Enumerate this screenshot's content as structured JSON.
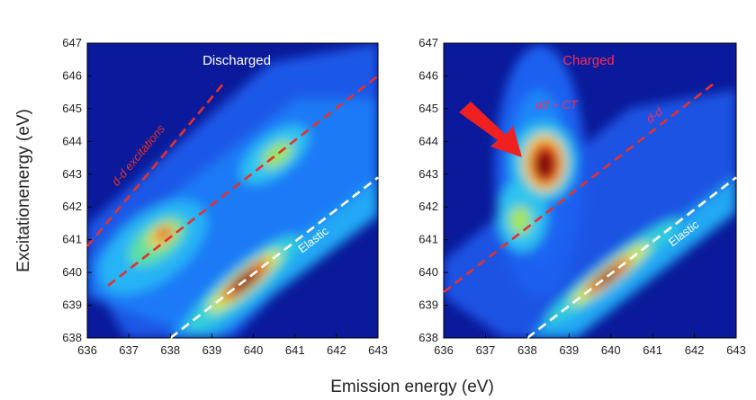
{
  "figure": {
    "ylabel": "Excitationenergy (eV)",
    "xlabel": "Emission energy (eV)"
  },
  "chart_data": [
    {
      "type": "heatmap",
      "title": "Discharged",
      "title_color": "#ffffff",
      "xlim": [
        636,
        643
      ],
      "ylim": [
        638,
        647
      ],
      "x_ticks": [
        636,
        637,
        638,
        639,
        640,
        641,
        642,
        643
      ],
      "y_ticks": [
        638,
        639,
        640,
        641,
        642,
        643,
        644,
        645,
        646,
        647
      ],
      "features": [
        {
          "label": "elastic peak",
          "x": 639.7,
          "y": 639.8,
          "intensity": 1.0
        },
        {
          "label": "d-d lower",
          "x": 637.8,
          "y": 640.9,
          "intensity": 0.7
        },
        {
          "label": "d-d upper",
          "x": 640.3,
          "y": 643.4,
          "intensity": 0.4
        }
      ],
      "lines": [
        {
          "label": "d-d excitations",
          "style": "dashed",
          "color": "#e8302a",
          "points": [
            [
              636,
              640.8
            ],
            [
              639.3,
              645.8
            ]
          ],
          "label_at": [
            637.3,
            643.5
          ],
          "label_color": "#e8302a"
        },
        {
          "label": "",
          "style": "dashed",
          "color": "#e8302a",
          "points": [
            [
              636.5,
              639.6
            ],
            [
              643,
              646.0
            ]
          ]
        },
        {
          "label": "Elastic",
          "style": "dashed",
          "color": "#ffffff",
          "points": [
            [
              638,
              638
            ],
            [
              643,
              642.9
            ]
          ],
          "label_at": [
            641.5,
            640.9
          ],
          "label_color": "#ffffff"
        }
      ]
    },
    {
      "type": "heatmap",
      "title": "Charged",
      "title_color": "#ff2a55",
      "xlim": [
        636,
        643
      ],
      "ylim": [
        638,
        647
      ],
      "x_ticks": [
        636,
        637,
        638,
        639,
        640,
        641,
        642,
        643
      ],
      "y_ticks": [
        638,
        639,
        640,
        641,
        642,
        643,
        644,
        645,
        646,
        647
      ],
      "features": [
        {
          "label": "dd + CT peak",
          "x": 638.4,
          "y": 643.1,
          "intensity": 1.0
        },
        {
          "label": "elastic peak",
          "x": 639.9,
          "y": 639.8,
          "intensity": 0.85
        },
        {
          "label": "d-d lower",
          "x": 637.8,
          "y": 641.5,
          "intensity": 0.4
        }
      ],
      "lines": [
        {
          "label": "d-d",
          "style": "dashed",
          "color": "#e8302a",
          "points": [
            [
              636,
              639.4
            ],
            [
              642.5,
              645.8
            ]
          ],
          "label_at": [
            641.1,
            644.7
          ],
          "label_color": "#ff2a55"
        },
        {
          "label": "Elastic",
          "style": "dashed",
          "color": "#ffffff",
          "points": [
            [
              638,
              638
            ],
            [
              643,
              642.9
            ]
          ],
          "label_at": [
            641.8,
            641.1
          ],
          "label_color": "#ffffff"
        }
      ],
      "annotations": [
        {
          "label": "dd + CT",
          "x": 638.2,
          "y": 645.0,
          "color": "#ff2a55"
        }
      ]
    }
  ]
}
